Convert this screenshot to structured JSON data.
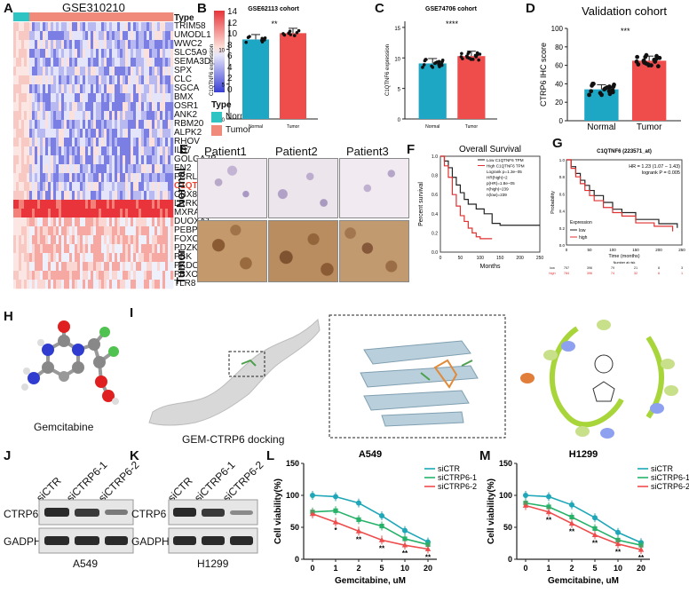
{
  "panels": {
    "A": {
      "letter": "A",
      "title": "GSE310210",
      "type_label": "Type",
      "genes": [
        "TRIM58",
        "UMODL1",
        "WWC2",
        "SLC5A9",
        "SEMA3D",
        "SPX",
        "CLC",
        "SGCA",
        "BMX",
        "OSR1",
        "ANK2",
        "RBM20",
        "ALPK2",
        "RHOV",
        "IL37",
        "GOLGA7B",
        "EN2",
        "FCRLA",
        "C1QTNF6",
        "CBX8",
        "LRRK2",
        "MXRA5",
        "DUOXA1",
        "PEBP4",
        "FOXO6",
        "PDZK1IP1",
        "PBK",
        "PKDCC",
        "FBXO17",
        "TLR8"
      ],
      "highlight_gene": "C1QTNF6",
      "colorbar_ticks": [
        "14",
        "12",
        "10",
        "8",
        "6",
        "4",
        "2",
        "0"
      ],
      "legend_title": "Type",
      "legend_normal": "Normal",
      "legend_tumor": "Tumor",
      "colors": {
        "normal": "#2ec4c4",
        "tumor": "#f08a7a",
        "high": "#e8343a",
        "low": "#3a3fd6"
      }
    },
    "B": {
      "letter": "B",
      "title": "GSE62113 cohort",
      "sig": "**",
      "ylabel": "C1QTNF6 expression",
      "categories": [
        "Normal",
        "Tumor"
      ],
      "values": [
        11.4,
        12.3
      ],
      "yticks": [
        "0",
        "5",
        "10"
      ]
    },
    "C": {
      "letter": "C",
      "title": "GSE74706 cohort",
      "sig": "****",
      "ylabel": "C1QTNF6 expression",
      "categories": [
        "Normal",
        "Tumor"
      ],
      "values": [
        9.1,
        10.3
      ],
      "yticks": [
        "0",
        "5",
        "10",
        "15"
      ]
    },
    "D": {
      "letter": "D",
      "title": "Validation cohort",
      "sig": "***",
      "ylabel": "CTRP6 IHC score",
      "categories": [
        "Normal",
        "Tumor"
      ],
      "values": [
        34,
        65
      ],
      "yticks": [
        "0",
        "20",
        "40",
        "60",
        "80",
        "100"
      ]
    },
    "E": {
      "letter": "E",
      "cols": [
        "Patient1",
        "Patient2",
        "Patient3"
      ],
      "rows": [
        "Normal",
        "Tumor"
      ]
    },
    "F": {
      "letter": "F",
      "title": "Overall Survival",
      "ylabel": "Percent survival",
      "xlabel": "Months",
      "legend": [
        "Low C1QTNF6 TPM",
        "High C1QTNF6 TPM",
        "Logrank p=1.3e−05",
        "HR(high)=2",
        "p(HR)=1.8e−05",
        "n(high)=239",
        "n(low)=239"
      ],
      "xticks": [
        "0",
        "50",
        "100",
        "150",
        "200",
        "250"
      ],
      "yticks": [
        "0.0",
        "0.2",
        "0.4",
        "0.6",
        "0.8",
        "1.0"
      ]
    },
    "G": {
      "letter": "G",
      "title": "C1QTNF6 (223571_at)",
      "hr": "HR = 1.23 (1.07 − 1.43)",
      "logrank": "logrank P = 0.005",
      "ylabel": "Probability",
      "xlabel": "Time (months)",
      "legend_title": "Expression",
      "legend_low": "low",
      "legend_high": "high",
      "xticks": [
        "0",
        "50",
        "100",
        "150",
        "200",
        "250"
      ],
      "yticks": [
        "0.0",
        "0.2",
        "0.4",
        "0.6",
        "0.8",
        "1.0"
      ],
      "risk_title": "Number at risk",
      "risk_low": [
        "low",
        "757",
        "396",
        "79",
        "21",
        "8",
        "3"
      ],
      "risk_high": [
        "high",
        "784",
        "396",
        "74",
        "32",
        "6",
        "1"
      ]
    },
    "H": {
      "letter": "H",
      "caption": "Gemcitabine"
    },
    "I": {
      "letter": "I",
      "caption": "GEM-CTRP6 docking"
    },
    "J": {
      "letter": "J",
      "lanes": [
        "siCTR",
        "siCTRP6-1",
        "siCTRP6-2"
      ],
      "rows": [
        "CTRP6",
        "GADPH"
      ],
      "cell": "A549"
    },
    "K": {
      "letter": "K",
      "lanes": [
        "siCTR",
        "siCTRP6-1",
        "siCTRP6-2"
      ],
      "rows": [
        "CTRP6",
        "GADPH"
      ],
      "cell": "H1299"
    },
    "L": {
      "letter": "L",
      "title": "A549",
      "ylabel": "Cell viability(%)",
      "xlabel": "Gemcitabine, uM"
    },
    "M": {
      "letter": "M",
      "title": "H1299",
      "ylabel": "Cell viability(%)",
      "xlabel": "Gemcitabine, uM"
    }
  },
  "chart_data": [
    {
      "type": "bar",
      "title": "GSE62113 cohort",
      "categories": [
        "Normal",
        "Tumor"
      ],
      "values": [
        11.4,
        12.3
      ],
      "ylim": [
        0,
        14
      ],
      "ylabel": "C1QTNF6 expression",
      "colors": [
        "#1ea7c4",
        "#ef4c4c"
      ]
    },
    {
      "type": "bar",
      "title": "GSE74706 cohort",
      "categories": [
        "Normal",
        "Tumor"
      ],
      "values": [
        9.1,
        10.3
      ],
      "ylim": [
        0,
        16
      ],
      "ylabel": "C1QTNF6 expression",
      "colors": [
        "#1ea7c4",
        "#ef4c4c"
      ]
    },
    {
      "type": "bar",
      "title": "Validation cohort",
      "categories": [
        "Normal",
        "Tumor"
      ],
      "values": [
        34,
        65
      ],
      "ylim": [
        0,
        100
      ],
      "ylabel": "CTRP6 IHC score",
      "colors": [
        "#1ea7c4",
        "#ef4c4c"
      ]
    },
    {
      "type": "line",
      "title": "A549",
      "xlabel": "Gemcitabine, uM",
      "ylabel": "Cell viability(%)",
      "categories": [
        "0",
        "1",
        "2",
        "5",
        "10",
        "20"
      ],
      "ylim": [
        0,
        150
      ],
      "yticks": [
        "0",
        "50",
        "100",
        "150"
      ],
      "series": [
        {
          "name": "siCTR",
          "values": [
            100,
            98,
            88,
            68,
            45,
            27
          ],
          "color": "#1ea7b8"
        },
        {
          "name": "siCTRP6-1",
          "values": [
            74,
            76,
            62,
            52,
            32,
            23
          ],
          "color": "#27b26a"
        },
        {
          "name": "siCTRP6-2",
          "values": [
            71,
            58,
            44,
            30,
            22,
            16
          ],
          "color": "#ef4c4c"
        }
      ],
      "sig_marks": [
        "*",
        "**",
        "**",
        "**",
        "**"
      ]
    },
    {
      "type": "line",
      "title": "H1299",
      "xlabel": "Gemcitabine, uM",
      "ylabel": "Cell viability(%)",
      "categories": [
        "0",
        "1",
        "2",
        "5",
        "10",
        "20"
      ],
      "ylim": [
        0,
        150
      ],
      "yticks": [
        "0",
        "50",
        "100",
        "150"
      ],
      "series": [
        {
          "name": "siCTR",
          "values": [
            100,
            98,
            85,
            65,
            42,
            26
          ],
          "color": "#1ea7b8"
        },
        {
          "name": "siCTRP6-1",
          "values": [
            88,
            82,
            66,
            48,
            30,
            22
          ],
          "color": "#27b26a"
        },
        {
          "name": "siCTRP6-2",
          "values": [
            84,
            74,
            56,
            38,
            24,
            15
          ],
          "color": "#ef4c4c"
        }
      ],
      "sig_marks": [
        "**",
        "**",
        "**",
        "**",
        "**"
      ]
    }
  ]
}
